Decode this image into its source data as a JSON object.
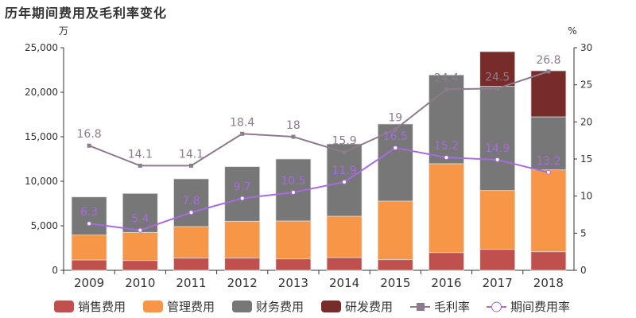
{
  "chart_data": {
    "type": "bar",
    "title": "历年期间费用及毛利率变化",
    "ylabel_left": "万",
    "ylabel_right": "%",
    "ylim_left": [
      0,
      25000
    ],
    "ylim_right": [
      0,
      30
    ],
    "yticks_left": [
      "0",
      "5,000",
      "10,000",
      "15,000",
      "20,000",
      "25,000"
    ],
    "yticks_right": [
      "0",
      "5",
      "10",
      "15",
      "20",
      "25",
      "30"
    ],
    "categories": [
      "2009",
      "2010",
      "2011",
      "2012",
      "2013",
      "2014",
      "2015",
      "2016",
      "2017",
      "2018"
    ],
    "bar_series": [
      {
        "name": "销售费用",
        "color": "#c0504d",
        "values": [
          1160,
          1100,
          1370,
          1370,
          1280,
          1430,
          1190,
          1990,
          2350,
          2080
        ]
      },
      {
        "name": "管理费用",
        "color": "#f79646",
        "values": [
          2800,
          3160,
          3540,
          4140,
          4260,
          4640,
          6580,
          9980,
          6610,
          9200
        ]
      },
      {
        "name": "财务费用",
        "color": "#777777",
        "values": [
          4280,
          4370,
          5360,
          6130,
          6960,
          8130,
          8660,
          9970,
          11700,
          5950
        ]
      },
      {
        "name": "研发费用",
        "color": "#772c2a",
        "values": [
          0,
          0,
          0,
          0,
          0,
          0,
          0,
          0,
          3900,
          5180
        ]
      }
    ],
    "line_series": [
      {
        "name": "毛利率",
        "color": "#8c7b8c",
        "values": [
          16.8,
          14.1,
          14.1,
          18.4,
          18,
          15.9,
          19,
          24.4,
          24.5,
          26.8
        ]
      },
      {
        "name": "期间费用率",
        "color": "#a66be0",
        "values": [
          6.3,
          5.4,
          7.8,
          9.7,
          10.5,
          11.9,
          16.5,
          15.2,
          14.9,
          13.2
        ]
      }
    ],
    "legend_position": "bottom",
    "grid": false
  }
}
